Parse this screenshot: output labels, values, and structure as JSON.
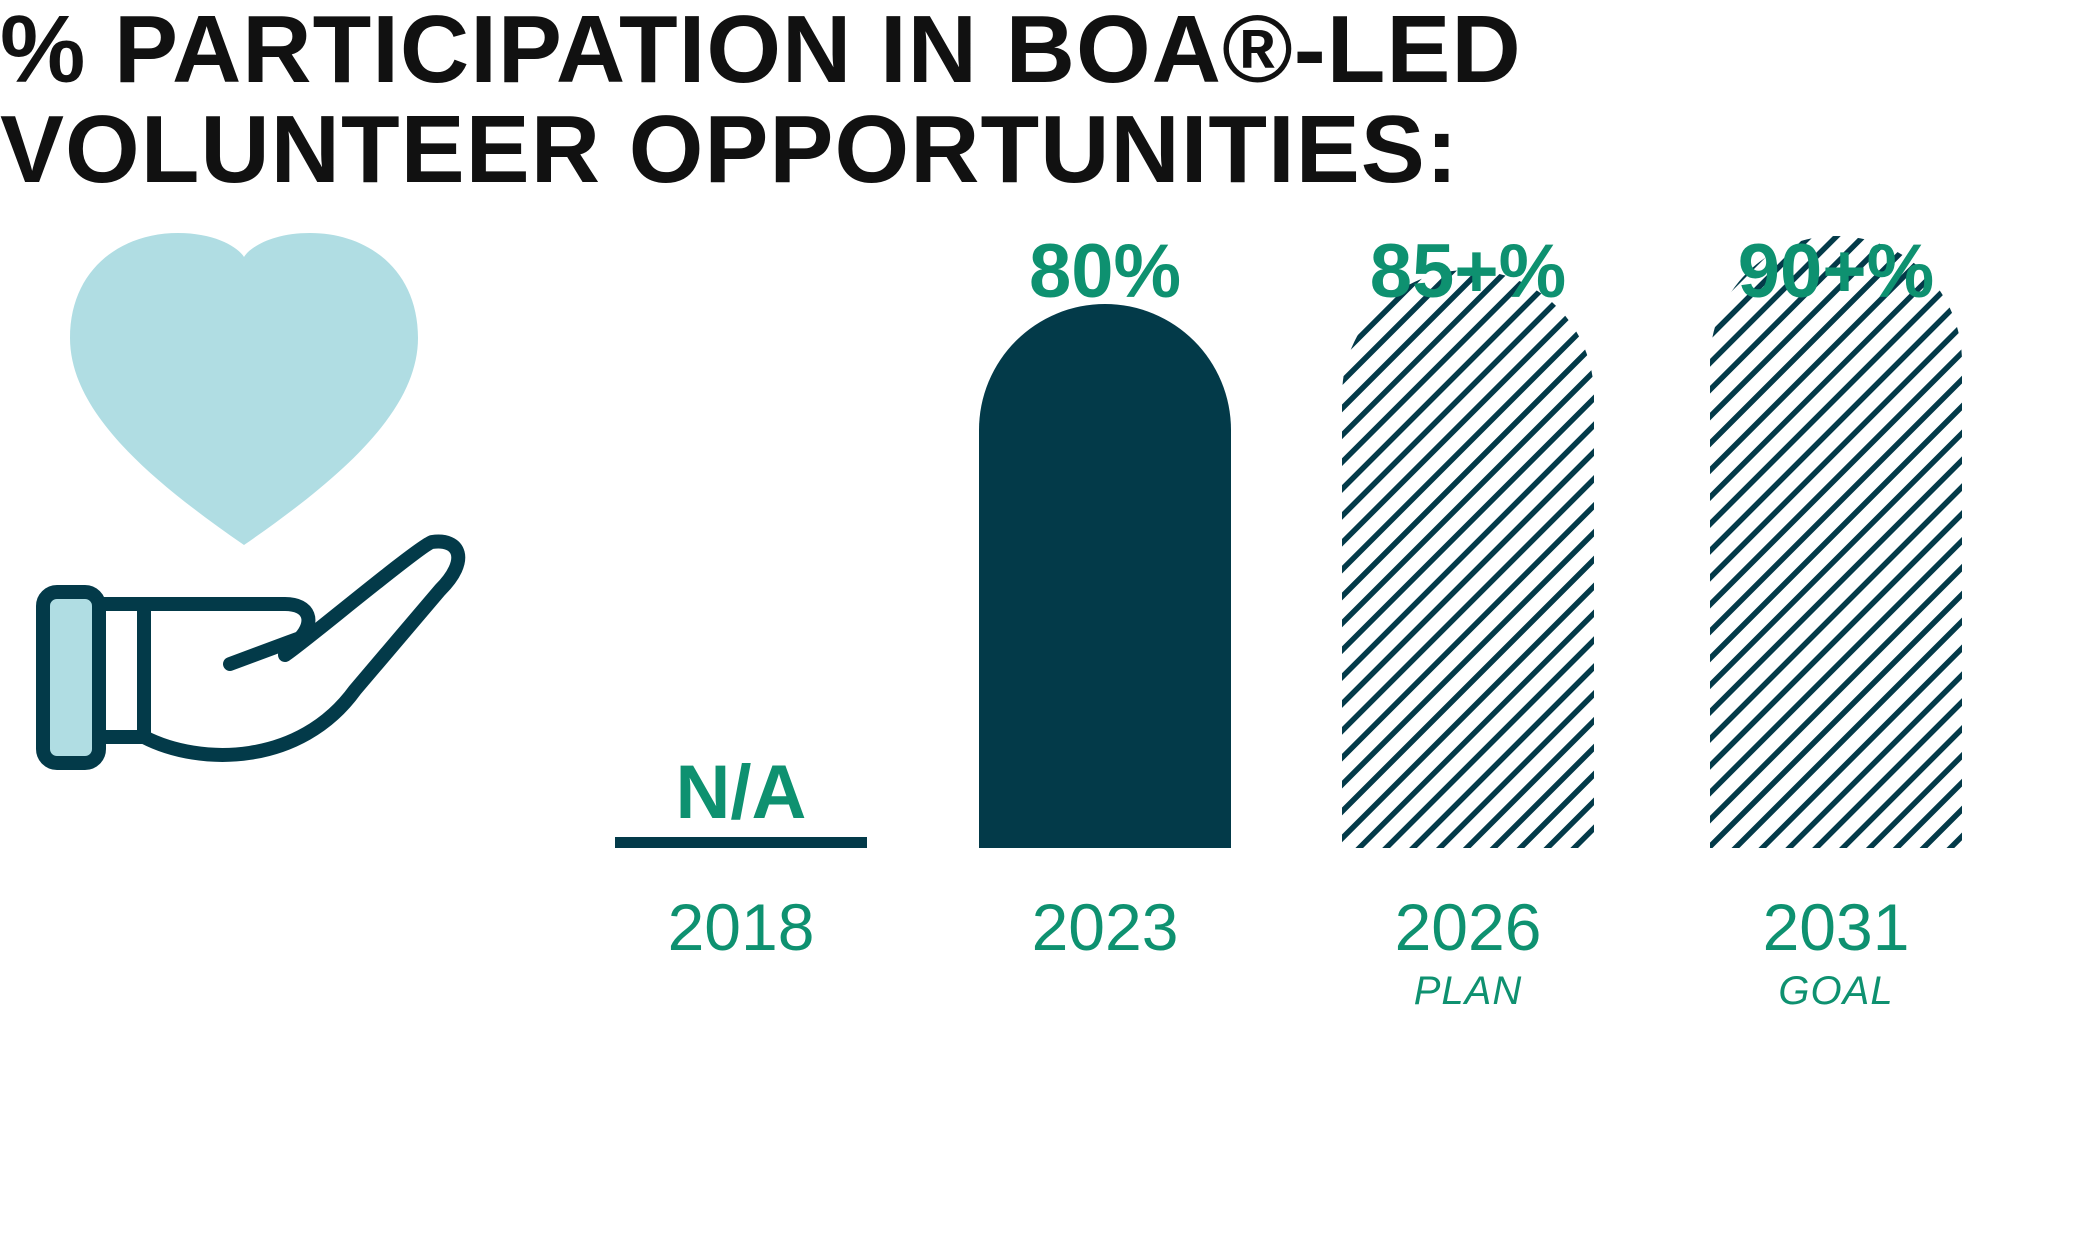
{
  "title_lines": [
    "% PARTICIPATION IN BOA®-LED",
    "VOLUNTEER OPPORTUNITIES:"
  ],
  "colors": {
    "title": "#111111",
    "accent_green": "#0e9170",
    "bar_dark": "#033a49",
    "heart": "#b0dde3",
    "icon_outline": "#033a49",
    "hand_cuff": "#b0dde3"
  },
  "icons": [
    "heart-icon",
    "hand-icon"
  ],
  "chart_data": {
    "type": "bar",
    "categories": [
      "2018",
      "2023",
      "2026",
      "2031"
    ],
    "values": [
      null,
      80,
      85,
      90
    ],
    "value_labels": [
      "N/A",
      "80%",
      "85+%",
      "90+%"
    ],
    "notes": [
      "",
      "",
      "PLAN",
      "GOAL"
    ],
    "bar_styles": [
      "none",
      "solid",
      "hatched",
      "hatched"
    ],
    "ylim": [
      0,
      100
    ],
    "grid": false,
    "legend": "none"
  }
}
